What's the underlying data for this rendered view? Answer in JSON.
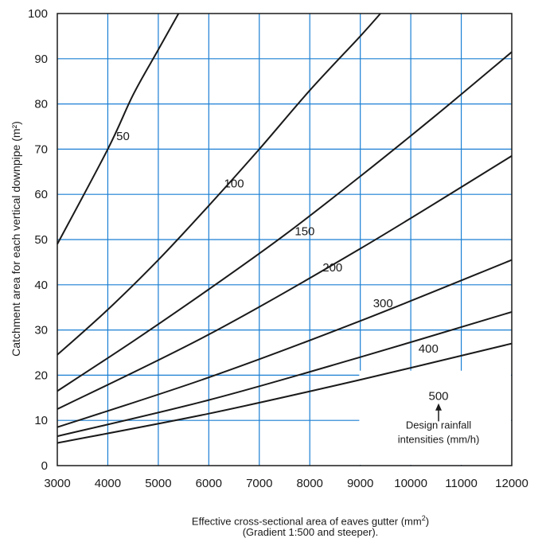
{
  "chart_data": {
    "type": "line",
    "xlim": [
      3000,
      12000
    ],
    "ylim": [
      0,
      100
    ],
    "x_ticks": [
      3000,
      4000,
      5000,
      6000,
      7000,
      8000,
      9000,
      10000,
      11000,
      12000
    ],
    "y_ticks": [
      0,
      10,
      20,
      30,
      40,
      50,
      60,
      70,
      80,
      90,
      100
    ],
    "grid": true,
    "grid_color": "#1a7fd4",
    "line_color": "#1a1a1a",
    "ylabel": "Catchment area for each vertical downpipe (m²)",
    "xlabel_line1": "Effective cross-sectional area of eaves gutter (mm²)",
    "xlabel_line2": "(Gradient 1:500 and steeper).",
    "annotation": [
      "Design rainfall",
      "intensities (mm/h)"
    ],
    "series": [
      {
        "name": "50",
        "x": [
          3000,
          4000,
          4500,
          5000,
          5400
        ],
        "y": [
          49,
          70,
          82,
          92,
          100
        ]
      },
      {
        "name": "100",
        "x": [
          3000,
          4000,
          5000,
          6000,
          7000,
          8000,
          9000,
          9400
        ],
        "y": [
          24.5,
          34.5,
          45.5,
          57.5,
          70,
          83,
          95,
          100
        ]
      },
      {
        "name": "150",
        "x": [
          3000,
          4500,
          6000,
          7500,
          9000,
          10500,
          12000
        ],
        "y": [
          16.5,
          27.5,
          39,
          51,
          64,
          77.5,
          91.5
        ]
      },
      {
        "name": "200",
        "x": [
          3000,
          6000,
          9000,
          12000
        ],
        "y": [
          12.5,
          29,
          48,
          68.5
        ]
      },
      {
        "name": "300",
        "x": [
          3000,
          6000,
          9000,
          12000
        ],
        "y": [
          8.5,
          19.5,
          32,
          45.5
        ]
      },
      {
        "name": "400",
        "x": [
          3000,
          6000,
          9000,
          12000
        ],
        "y": [
          6.5,
          14.5,
          24,
          34
        ]
      },
      {
        "name": "500",
        "x": [
          3000,
          6000,
          9000,
          12000
        ],
        "y": [
          5,
          11.5,
          19,
          27
        ]
      }
    ]
  }
}
